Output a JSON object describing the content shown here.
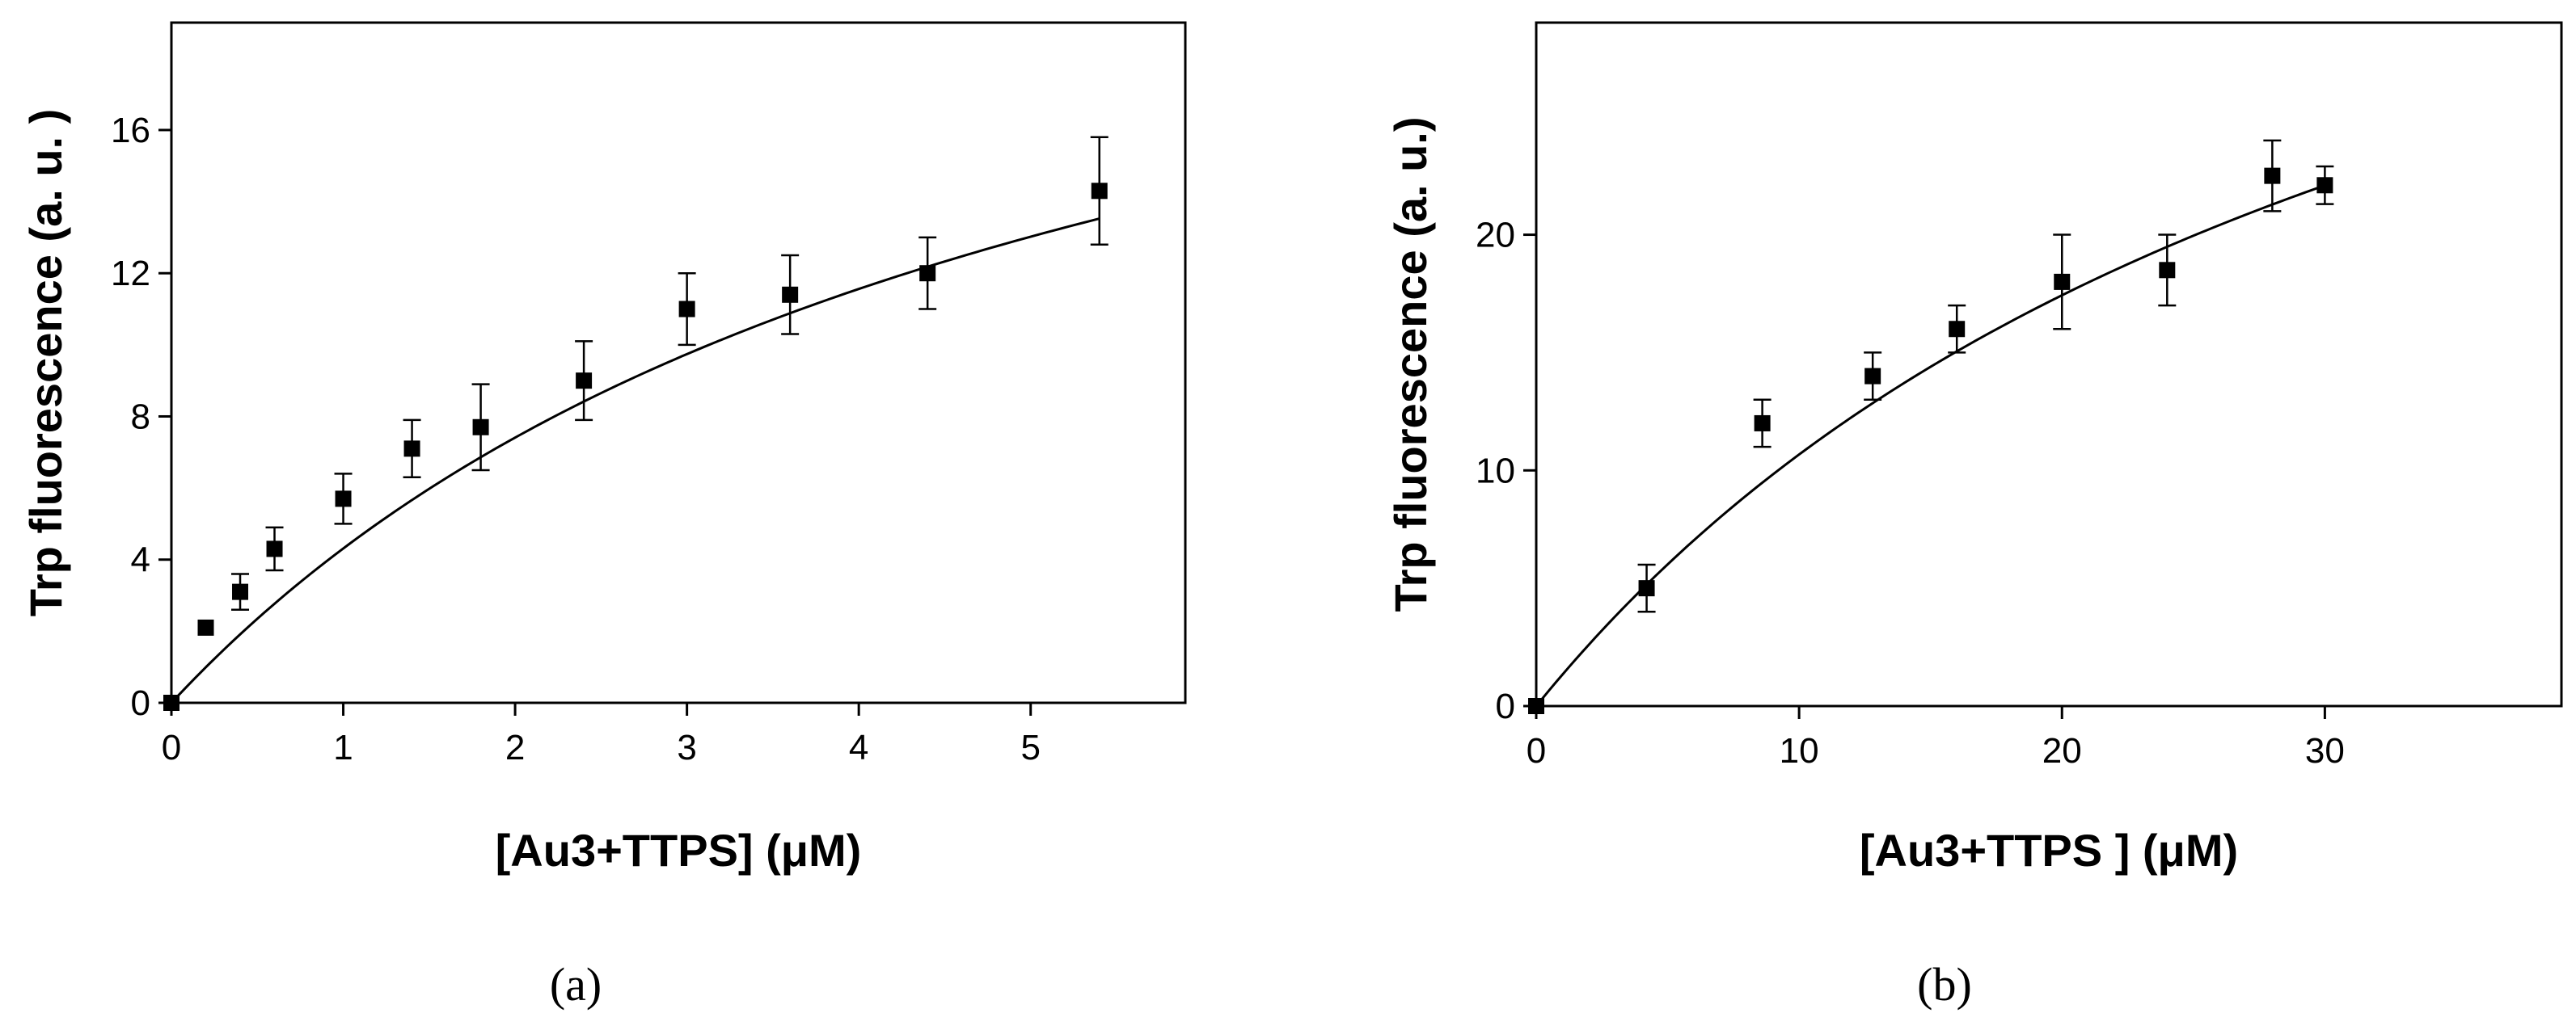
{
  "chart_data": [
    {
      "type": "scatter",
      "panel_label": "(a)",
      "xlabel": "[Au3+TTPS] (μM)",
      "ylabel": "Trp fluorescence (a. u. )",
      "xlim": [
        0,
        5.9
      ],
      "ylim": [
        0,
        19
      ],
      "xticks": [
        0,
        1,
        2,
        3,
        4,
        5
      ],
      "yticks": [
        0,
        4,
        8,
        12,
        16
      ],
      "grid": false,
      "legend": "none",
      "series": [
        {
          "name": "data",
          "x": [
            0,
            0.2,
            0.4,
            0.6,
            1.0,
            1.4,
            1.8,
            2.4,
            3.0,
            3.6,
            4.4,
            5.4
          ],
          "y": [
            0,
            2.1,
            3.1,
            4.3,
            5.7,
            7.1,
            7.7,
            9.0,
            11.0,
            11.4,
            12.0,
            14.3
          ],
          "yerr": [
            0,
            0,
            0.5,
            0.6,
            0.7,
            0.8,
            1.2,
            1.1,
            1.0,
            1.1,
            1.0,
            1.5
          ]
        }
      ],
      "fit": {
        "type": "saturation",
        "bmax": 26.3,
        "kd": 5.1,
        "x_range": [
          0,
          5.4
        ]
      }
    },
    {
      "type": "scatter",
      "panel_label": "(b)",
      "xlabel": "[Au3+TTPS ] (μM)",
      "ylabel": "Trp fluorescence (a. u.)",
      "xlim": [
        0,
        39
      ],
      "ylim": [
        0,
        29
      ],
      "xticks": [
        0,
        10,
        20,
        30
      ],
      "yticks": [
        0,
        10,
        20
      ],
      "grid": false,
      "legend": "none",
      "series": [
        {
          "name": "data",
          "x": [
            0,
            4.2,
            8.6,
            12.8,
            16.0,
            20.0,
            24.0,
            28.0,
            30.0
          ],
          "y": [
            0,
            5.0,
            12.0,
            14.0,
            16.0,
            18.0,
            18.5,
            22.5,
            22.1
          ],
          "yerr": [
            0,
            1.0,
            1.0,
            1.0,
            1.0,
            2.0,
            1.5,
            1.5,
            0.8
          ]
        }
      ],
      "fit": {
        "type": "saturation",
        "bmax": 47.5,
        "kd": 34.5,
        "x_range": [
          0,
          30
        ]
      }
    }
  ]
}
